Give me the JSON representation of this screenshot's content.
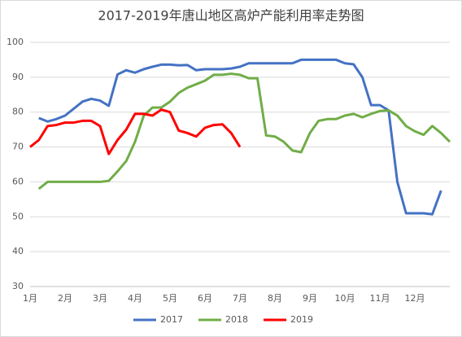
{
  "chart_data": {
    "type": "line",
    "title": "2017-2019年唐山地区高炉产能利用率走势图",
    "categories": [
      "1月",
      null,
      null,
      null,
      "2月",
      null,
      null,
      null,
      "3月",
      null,
      null,
      null,
      "4月",
      null,
      null,
      null,
      "5月",
      null,
      null,
      null,
      "6月",
      null,
      null,
      null,
      "7月",
      null,
      null,
      null,
      "8月",
      null,
      null,
      null,
      "9月",
      null,
      null,
      null,
      "10月",
      null,
      null,
      null,
      "11月",
      null,
      null,
      null,
      "12月",
      null,
      null,
      null,
      null
    ],
    "series": [
      {
        "name": "2017",
        "color": "#4472c4",
        "values": [
          null,
          78.3,
          77.3,
          78,
          79,
          81,
          83,
          83.8,
          83.3,
          81.8,
          90.8,
          92,
          91.3,
          92.3,
          93,
          93.6,
          93.6,
          93.4,
          93.5,
          92,
          92.3,
          92.3,
          92.3,
          92.5,
          93,
          94,
          94,
          94,
          94,
          94,
          94,
          95,
          95,
          95,
          95,
          95,
          94,
          93.7,
          90,
          82,
          82,
          80.5,
          60,
          51,
          51,
          51,
          50.7,
          57.5,
          null
        ]
      },
      {
        "name": "2018",
        "color": "#70ad47",
        "values": [
          null,
          58,
          60,
          60,
          60,
          60,
          60,
          60,
          60,
          60.3,
          63,
          66,
          71.5,
          79,
          81.3,
          81.3,
          83,
          85.5,
          87,
          88,
          89,
          90.7,
          90.7,
          91,
          90.7,
          89.7,
          89.7,
          73.3,
          73,
          71.5,
          69,
          68.5,
          74,
          77.5,
          78,
          78,
          79,
          79.5,
          78.5,
          79.5,
          80.3,
          80.5,
          79,
          76,
          74.5,
          73.5,
          76,
          74,
          71.5
        ]
      },
      {
        "name": "2019",
        "color": "#ff0000",
        "values": [
          70,
          72,
          76,
          76.3,
          77,
          77,
          77.5,
          77.5,
          76,
          68,
          72,
          75,
          79.5,
          79.5,
          79,
          80.7,
          80,
          74.7,
          74,
          73,
          75.5,
          76.3,
          76.5,
          74,
          70,
          null,
          null,
          null,
          null,
          null,
          null,
          null,
          null,
          null,
          null,
          null,
          null,
          null,
          null,
          null,
          null,
          null,
          null,
          null,
          null,
          null,
          null,
          null,
          null
        ]
      }
    ],
    "ylim": [
      30,
      100
    ],
    "yticks": [
      30,
      40,
      50,
      60,
      70,
      80,
      90,
      100
    ],
    "grid": true,
    "legend": "bottom"
  }
}
